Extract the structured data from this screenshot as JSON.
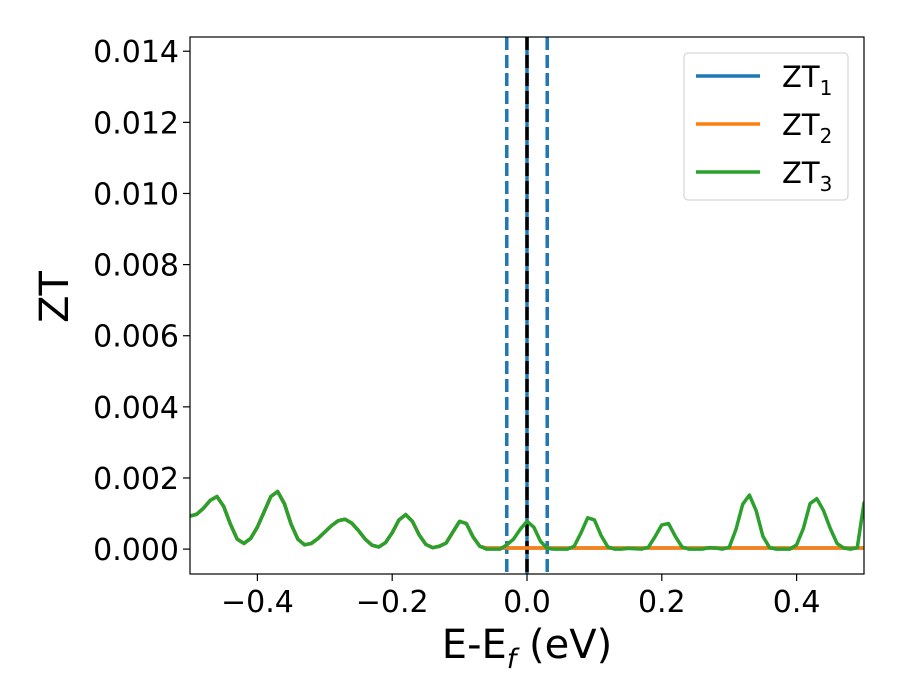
{
  "chart_data": {
    "type": "line",
    "xlabel_main": "E-E",
    "xlabel_sub": "f",
    "xlabel_tail": " (eV)",
    "ylabel": "ZT",
    "xlim": [
      -0.5,
      0.5
    ],
    "ylim": [
      -0.0007,
      0.0144
    ],
    "grid": false,
    "legend_position": "top-right",
    "x_ticks": [
      -0.4,
      -0.2,
      0.0,
      0.2,
      0.4
    ],
    "x_tick_labels": [
      "−0.4",
      "−0.2",
      "0.0",
      "0.2",
      "0.4"
    ],
    "y_ticks": [
      0.0,
      0.002,
      0.004,
      0.006,
      0.008,
      0.01,
      0.012,
      0.014
    ],
    "y_tick_labels": [
      "0.000",
      "0.002",
      "0.004",
      "0.006",
      "0.008",
      "0.010",
      "0.012",
      "0.014"
    ],
    "vlines": [
      {
        "x": -0.03,
        "color": "#1f77b4",
        "style": "dashed"
      },
      {
        "x": 0.0,
        "color": "#1f77b4",
        "style": "solid"
      },
      {
        "x": 0.0,
        "color": "#000000",
        "style": "dashed"
      },
      {
        "x": 0.03,
        "color": "#1f77b4",
        "style": "dashed"
      }
    ],
    "x": [
      -0.5,
      -0.49,
      -0.48,
      -0.47,
      -0.46,
      -0.45,
      -0.44,
      -0.43,
      -0.42,
      -0.41,
      -0.4,
      -0.39,
      -0.38,
      -0.37,
      -0.36,
      -0.35,
      -0.34,
      -0.33,
      -0.32,
      -0.31,
      -0.3,
      -0.29,
      -0.28,
      -0.27,
      -0.26,
      -0.25,
      -0.24,
      -0.23,
      -0.22,
      -0.21,
      -0.2,
      -0.19,
      -0.18,
      -0.17,
      -0.16,
      -0.15,
      -0.14,
      -0.13,
      -0.12,
      -0.11,
      -0.1,
      -0.09,
      -0.08,
      -0.07,
      -0.06,
      -0.05,
      -0.04,
      -0.03,
      -0.02,
      -0.01,
      0.0,
      0.01,
      0.02,
      0.03,
      0.04,
      0.05,
      0.06,
      0.07,
      0.08,
      0.09,
      0.1,
      0.11,
      0.12,
      0.13,
      0.14,
      0.15,
      0.16,
      0.17,
      0.18,
      0.19,
      0.2,
      0.21,
      0.22,
      0.23,
      0.24,
      0.25,
      0.26,
      0.27,
      0.28,
      0.29,
      0.3,
      0.31,
      0.32,
      0.33,
      0.34,
      0.35,
      0.36,
      0.37,
      0.38,
      0.39,
      0.4,
      0.41,
      0.42,
      0.43,
      0.44,
      0.45,
      0.46,
      0.47,
      0.48,
      0.49,
      0.5
    ],
    "series": [
      {
        "name_main": "ZT",
        "name_sub": "1",
        "color": "#1f77b4",
        "values": [
          0.00093,
          0.00098,
          0.00115,
          0.00137,
          0.00148,
          0.0012,
          0.0007,
          0.00028,
          0.00016,
          0.0003,
          0.00062,
          0.00105,
          0.00148,
          0.00162,
          0.00128,
          0.0007,
          0.00028,
          0.00012,
          0.00016,
          0.0003,
          0.00048,
          0.00066,
          0.0008,
          0.00084,
          0.00073,
          0.00052,
          0.00028,
          0.00011,
          6e-05,
          0.00018,
          0.00046,
          0.00082,
          0.00097,
          0.00078,
          0.0004,
          0.00013,
          4e-05,
          8e-05,
          0.00017,
          0.00048,
          0.00078,
          0.00072,
          0.00034,
          8e-05,
          3e-05,
          3e-05,
          3e-05,
          3e-05,
          3e-05,
          3e-05,
          3e-05,
          3e-05,
          3e-05,
          3e-05,
          3e-05,
          3e-05,
          3e-05,
          3e-05,
          3e-05,
          3e-05,
          3e-05,
          3e-05,
          3e-05,
          3e-05,
          3e-05,
          3e-05,
          3e-05,
          3e-05,
          3e-05,
          3e-05,
          3e-05,
          3e-05,
          3e-05,
          3e-05,
          3e-05,
          3e-05,
          3e-05,
          3e-05,
          3e-05,
          3e-05,
          3e-05,
          3e-05,
          3e-05,
          3e-05,
          3e-05,
          3e-05,
          3e-05,
          3e-05,
          3e-05,
          3e-05,
          3e-05,
          3e-05,
          3e-05,
          3e-05,
          3e-05,
          3e-05,
          3e-05,
          3e-05,
          3e-05,
          3e-05,
          3e-05
        ]
      },
      {
        "name_main": "ZT",
        "name_sub": "2",
        "color": "#ff7f0e",
        "values": [
          0.00093,
          0.00098,
          0.00115,
          0.00137,
          0.00148,
          0.0012,
          0.0007,
          0.00028,
          0.00016,
          0.0003,
          0.00062,
          0.00105,
          0.00148,
          0.00162,
          0.00128,
          0.0007,
          0.00028,
          0.00012,
          0.00016,
          0.0003,
          0.00048,
          0.00066,
          0.0008,
          0.00084,
          0.00073,
          0.00052,
          0.00028,
          0.00011,
          6e-05,
          0.00018,
          0.00046,
          0.00082,
          0.00097,
          0.00078,
          0.0004,
          0.00013,
          4e-05,
          8e-05,
          0.00017,
          0.00048,
          0.00078,
          0.00072,
          0.00034,
          8e-05,
          3e-05,
          3e-05,
          3e-05,
          3e-05,
          3e-05,
          3e-05,
          3e-05,
          3e-05,
          3e-05,
          3e-05,
          3e-05,
          3e-05,
          3e-05,
          3e-05,
          3e-05,
          3e-05,
          3e-05,
          3e-05,
          3e-05,
          3e-05,
          3e-05,
          3e-05,
          3e-05,
          3e-05,
          3e-05,
          3e-05,
          3e-05,
          3e-05,
          3e-05,
          3e-05,
          3e-05,
          3e-05,
          3e-05,
          3e-05,
          3e-05,
          3e-05,
          3e-05,
          3e-05,
          3e-05,
          3e-05,
          3e-05,
          3e-05,
          3e-05,
          3e-05,
          3e-05,
          3e-05,
          3e-05,
          3e-05,
          3e-05,
          3e-05,
          3e-05,
          3e-05,
          3e-05,
          3e-05,
          3e-05,
          3e-05,
          3e-05
        ]
      },
      {
        "name_main": "ZT",
        "name_sub": "3",
        "color": "#2ca02c",
        "values": [
          0.00093,
          0.00098,
          0.00115,
          0.00137,
          0.00148,
          0.0012,
          0.0007,
          0.00028,
          0.00016,
          0.0003,
          0.00062,
          0.00105,
          0.00148,
          0.00162,
          0.00128,
          0.0007,
          0.00028,
          0.00012,
          0.00016,
          0.0003,
          0.00048,
          0.00066,
          0.0008,
          0.00084,
          0.00073,
          0.00052,
          0.00028,
          0.00011,
          6e-05,
          0.00018,
          0.00046,
          0.00082,
          0.00097,
          0.00078,
          0.0004,
          0.00013,
          4e-05,
          8e-05,
          0.00017,
          0.00048,
          0.00078,
          0.00072,
          0.00034,
          8e-05,
          0.0,
          0.0,
          0.0,
          0.00012,
          0.00028,
          0.00056,
          0.00078,
          0.00062,
          0.00022,
          2e-05,
          0.0,
          0.0,
          0.0,
          8e-05,
          0.00045,
          0.00088,
          0.00082,
          0.00038,
          6e-05,
          0.0,
          0.0,
          2e-05,
          1e-05,
          0.0,
          5e-05,
          0.00035,
          0.00068,
          0.00072,
          0.00036,
          6e-05,
          0.0,
          0.0,
          0.0,
          4e-05,
          3e-05,
          0.0,
          5e-05,
          0.00055,
          0.00126,
          0.00152,
          0.00108,
          0.00036,
          4e-05,
          0.0,
          0.0,
          0.0,
          0.00012,
          0.00058,
          0.00128,
          0.00142,
          0.00108,
          0.00058,
          0.00016,
          3e-05,
          0.0,
          4e-05,
          0.0013
        ]
      }
    ]
  }
}
